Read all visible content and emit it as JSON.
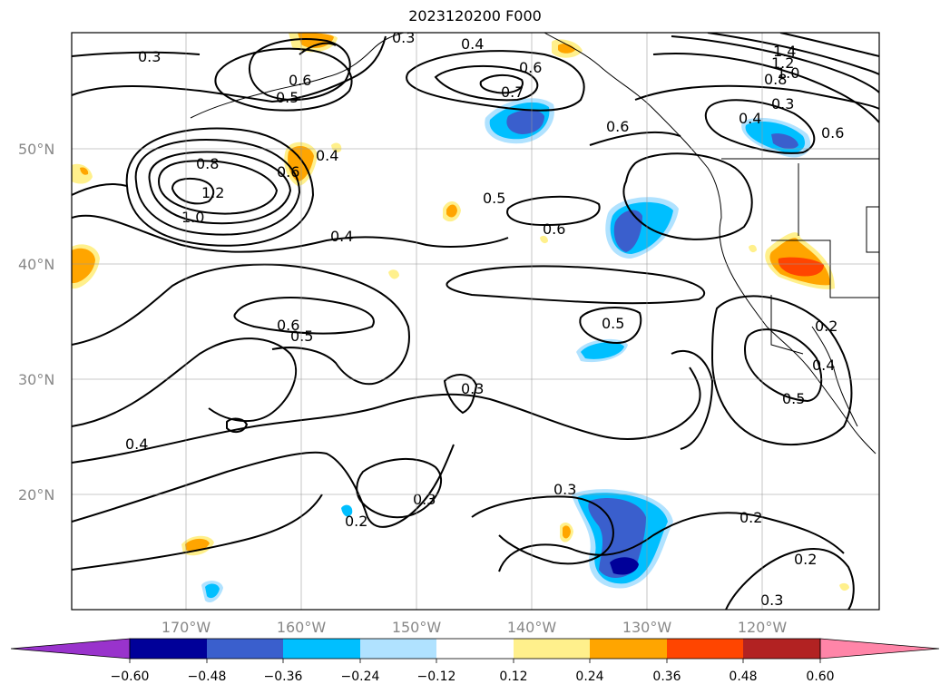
{
  "title": "2023120200 F000",
  "map": {
    "lat_labels": [
      {
        "lat": 50,
        "label": "50°N"
      },
      {
        "lat": 40,
        "label": "40°N"
      },
      {
        "lat": 30,
        "label": "30°N"
      },
      {
        "lat": 20,
        "label": "20°N"
      }
    ],
    "lon_labels": [
      {
        "lon": -170,
        "label": "170°W"
      },
      {
        "lon": -160,
        "label": "160°W"
      },
      {
        "lon": -150,
        "label": "150°W"
      },
      {
        "lon": -140,
        "label": "140°W"
      },
      {
        "lon": -130,
        "label": "130°W"
      },
      {
        "lon": -120,
        "label": "120°W"
      }
    ],
    "contour_labels": [
      "0.3",
      "0.4",
      "0.3",
      "1.4",
      "1.2",
      "1.0",
      "0.8",
      "0.6",
      "0.5",
      "0.6",
      "0.7",
      "0.6",
      "0.4",
      "0.3",
      "0.6",
      "0.8",
      "1.0",
      "1.2",
      "0.6",
      "0.4",
      "0.5",
      "0.6",
      "0.4",
      "0.6",
      "0.5",
      "0.5",
      "0.2",
      "0.4",
      "0.5",
      "0.3",
      "0.4",
      "0.3",
      "0.2",
      "0.3",
      "0.2",
      "0.2",
      "0.3"
    ],
    "colors": {
      "neg_060": "#9933cc",
      "neg_048": "#000099",
      "neg_036": "#3a5fcd",
      "neg_024": "#00bfff",
      "neg_012": "#b0e2ff",
      "pos_012": "#fff08c",
      "pos_024": "#ffa500",
      "pos_036": "#ff4500",
      "pos_048": "#b22222",
      "pos_060": "#ff85a8"
    }
  },
  "colorbar": {
    "ticks": [
      "−0.60",
      "−0.48",
      "−0.36",
      "−0.24",
      "−0.12",
      "0.12",
      "0.24",
      "0.36",
      "0.48",
      "0.60"
    ],
    "colors": [
      "#9933cc",
      "#000099",
      "#3a5fcd",
      "#00bfff",
      "#b0e2ff",
      "#ffffff",
      "#fff08c",
      "#ffa500",
      "#ff4500",
      "#b22222",
      "#ff85a8"
    ]
  }
}
